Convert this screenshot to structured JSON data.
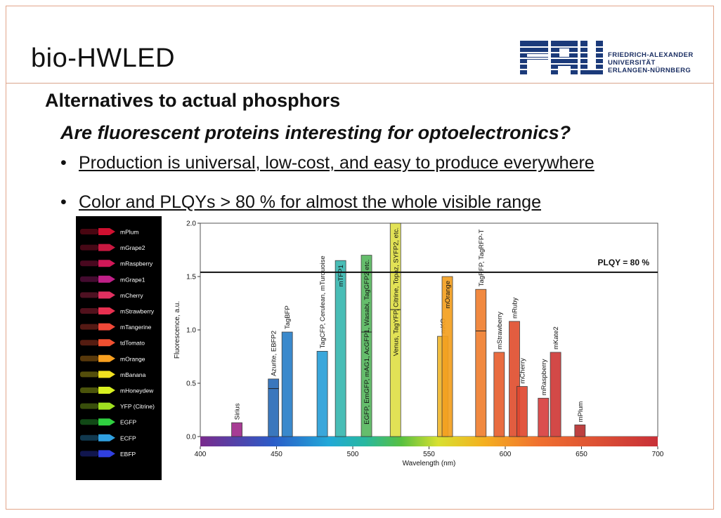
{
  "slide": {
    "title": "bio-HWLED",
    "subtitle": "Alternatives to actual phosphors",
    "question": "Are fluorescent proteins interesting for optoelectronics?",
    "bullets": [
      "Production is universal, low-cost, and easy to produce everywhere",
      "Color and PLQYs > 80 % for almost the whole visible range"
    ],
    "bullet_glyph": "•"
  },
  "logo": {
    "mark": "FAU",
    "lines": [
      "FRIEDRICH-ALEXANDER",
      "UNIVERSITÄT",
      "ERLANGEN-NÜRNBERG"
    ],
    "color": "#1b3a7a"
  },
  "photo": {
    "labels": [
      "mPlum",
      "mGrape2",
      "mRaspberry",
      "mGrape1",
      "mCherry",
      "mStrawberry",
      "mTangerine",
      "tdTomato",
      "mOrange",
      "mBanana",
      "mHoneydew",
      "YFP (Citrine)",
      "EGFP",
      "ECFP",
      "EBFP"
    ],
    "colors": [
      "#d01030",
      "#c81840",
      "#d01858",
      "#c02088",
      "#e03060",
      "#e83050",
      "#f04838",
      "#f05030",
      "#f8a020",
      "#f0e020",
      "#d8f020",
      "#a0e020",
      "#30d040",
      "#30a0e0",
      "#3040e0"
    ]
  },
  "chart_data": {
    "type": "bar",
    "xlabel": "Wavelength (nm)",
    "ylabel": "Fluorescence, a.u.",
    "xlim": [
      400,
      700
    ],
    "ylim": [
      0,
      2.0
    ],
    "xticks": [
      400,
      450,
      500,
      550,
      600,
      650,
      700
    ],
    "yticks": [
      0.0,
      0.5,
      1.0,
      1.5,
      2.0
    ],
    "grid": false,
    "reference_line": {
      "y": 1.54,
      "label": "PLQY = 80 %"
    },
    "bars": [
      {
        "label": "Sirius",
        "x": 424,
        "value": 0.13,
        "inner": null,
        "color": "#a02c8c"
      },
      {
        "label": "Azurite, EBFP2",
        "x": 448,
        "value": 0.54,
        "inner": 0.45,
        "color": "#2a6cb8"
      },
      {
        "label": "TagBFP",
        "x": 457,
        "value": 0.98,
        "inner": null,
        "color": "#2a80c8"
      },
      {
        "label": "TagCFP, Cerulean, mTurquoise",
        "x": 480,
        "value": 0.8,
        "inner": null,
        "color": "#2aa0d8"
      },
      {
        "label": "mTFP1",
        "x": 492,
        "value": 1.65,
        "inner": null,
        "color": "#3ab8b0"
      },
      {
        "label": "EGFP, EmGFP, mAG1, AcGFP1, Wasabi, TagGFP2 etc.",
        "x": 509,
        "value": 1.7,
        "inner": 0.98,
        "color": "#58b860"
      },
      {
        "label": "Venus, TagYFP, Citrine, Topaz, SYFP2, etc.",
        "x": 528,
        "value": 2.0,
        "inner": 1.19,
        "color": "#e0e048"
      },
      {
        "label": "mKO",
        "x": 559,
        "value": 0.94,
        "inner": null,
        "color": "#f0b830"
      },
      {
        "label": "mOrange",
        "x": 562,
        "value": 1.5,
        "inner": null,
        "color": "#f4a020"
      },
      {
        "label": "TagRFP, TagRFP-T",
        "x": 584,
        "value": 1.38,
        "inner": 0.99,
        "color": "#f08030"
      },
      {
        "label": "mStrawberry",
        "x": 596,
        "value": 0.79,
        "inner": null,
        "color": "#e86030"
      },
      {
        "label": "mRuby",
        "x": 606,
        "value": 1.08,
        "inner": null,
        "color": "#e05030"
      },
      {
        "label": "mCherry",
        "x": 611,
        "value": 0.47,
        "inner": null,
        "color": "#e04830"
      },
      {
        "label": "mRaspberry",
        "x": 625,
        "value": 0.36,
        "inner": null,
        "color": "#d84040"
      },
      {
        "label": "mKate2",
        "x": 633,
        "value": 0.79,
        "inner": null,
        "color": "#d03a38"
      },
      {
        "label": "mPlum",
        "x": 649,
        "value": 0.11,
        "inner": null,
        "color": "#b83030"
      }
    ]
  }
}
